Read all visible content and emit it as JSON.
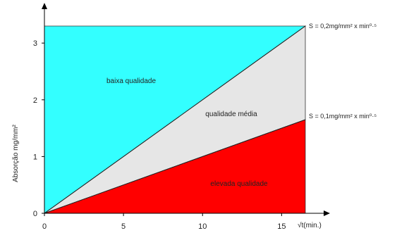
{
  "chart_data": {
    "type": "area",
    "xlabel": "√t(min.)",
    "ylabel": "Absorção mg/mm²",
    "xlim": [
      0,
      16.5
    ],
    "ylim": [
      0,
      3.3
    ],
    "x_ticks": [
      0,
      5,
      10,
      15
    ],
    "y_ticks": [
      0,
      1,
      2,
      3
    ],
    "series": [
      {
        "name": "S = 0,2mg/mm² x min⁰·⁵",
        "x": [
          0,
          16.5
        ],
        "y": [
          0,
          3.3
        ]
      },
      {
        "name": "S = 0,1mg/mm² x min⁰·⁵",
        "x": [
          0,
          16.5
        ],
        "y": [
          0,
          1.65
        ]
      }
    ],
    "regions": [
      {
        "label": "baixa qualidade",
        "color": "#33ffff"
      },
      {
        "label": "qualidade média",
        "color": "#e6e6e6"
      },
      {
        "label": "elevada qualidade",
        "color": "#ff0000"
      }
    ],
    "grid": false,
    "legend": "none"
  }
}
